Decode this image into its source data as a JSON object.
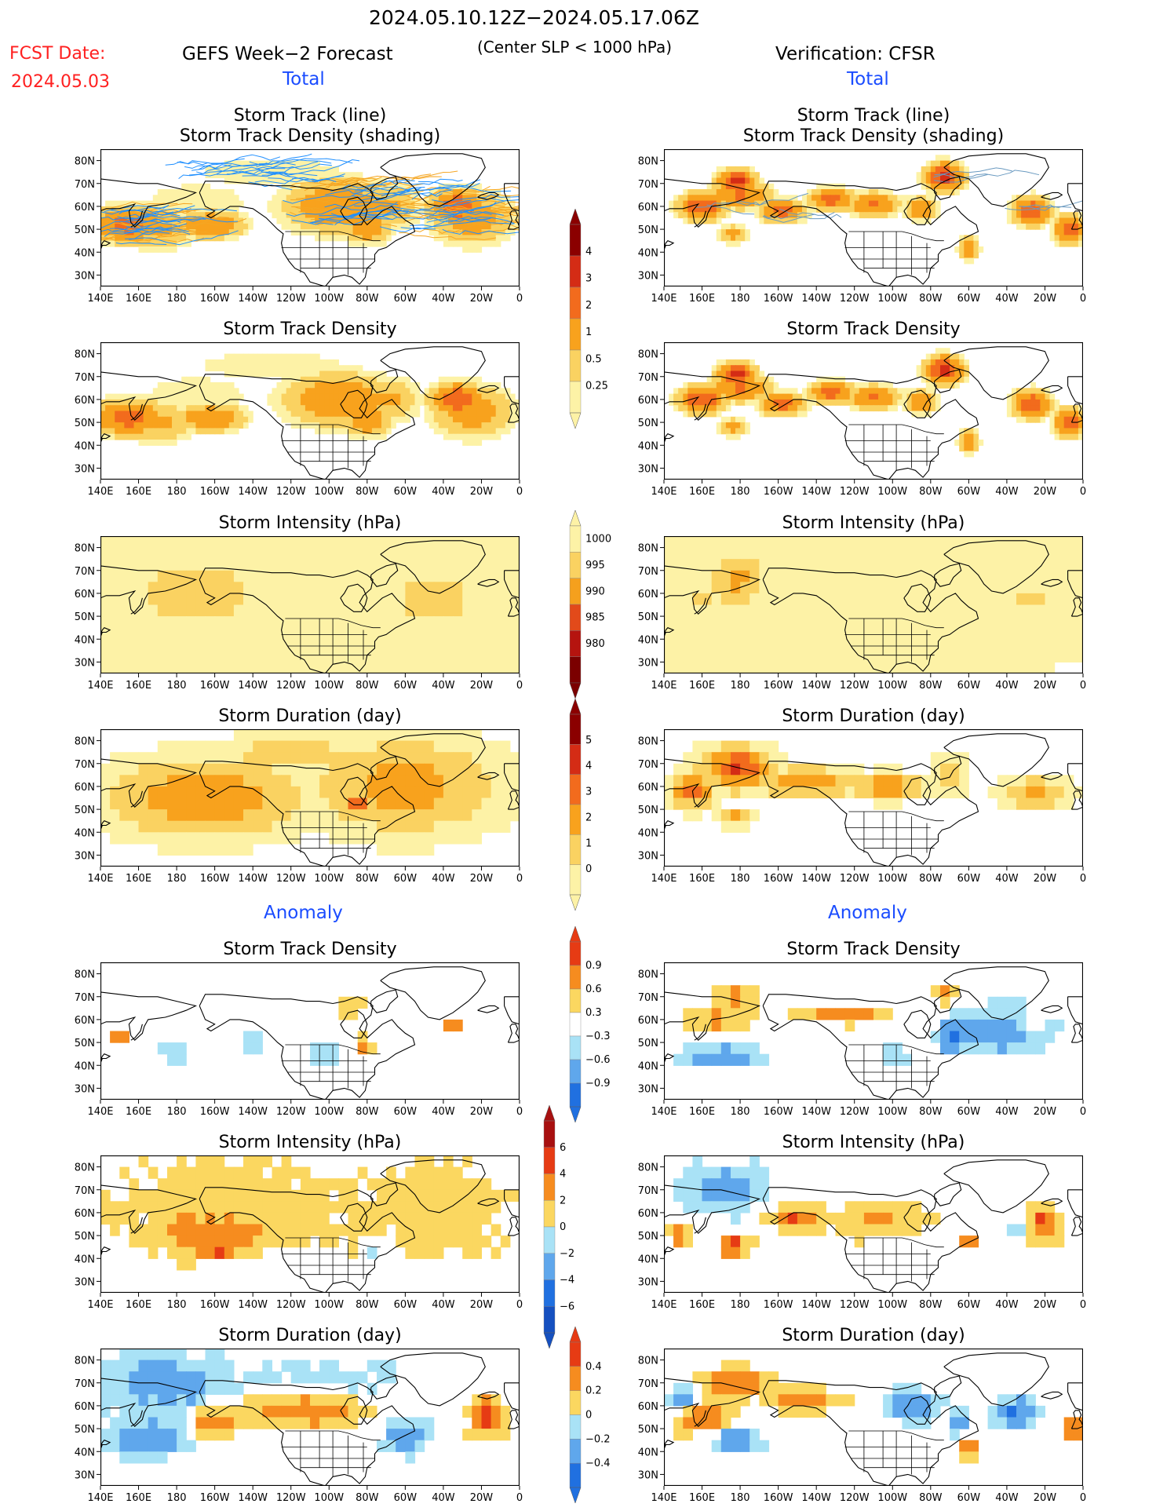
{
  "header": {
    "period": "2024.05.10.12Z−2024.05.17.06Z",
    "criteria": "(Center SLP < 1000 hPa)",
    "fcst_label": "FCST Date:",
    "fcst_date": "2024.05.03",
    "left_title": "GEFS Week−2 Forecast",
    "right_title": "Verification: CFSR",
    "total_label": "Total",
    "anomaly_label": "Anomaly"
  },
  "colors": {
    "red_text": "#ff2020",
    "blue_text": "#1a4cff",
    "land_outline": "#000000",
    "track_forecast": "#1f8fff",
    "track_verif": "#6a9ac0"
  },
  "axes": {
    "lon_ticks": [
      "140E",
      "160E",
      "180",
      "160W",
      "140W",
      "120W",
      "100W",
      "80W",
      "60W",
      "40W",
      "20W",
      "0"
    ],
    "lat_ticks": [
      "80N",
      "70N",
      "60N",
      "50N",
      "40N",
      "30N"
    ],
    "lon_range_deg_east": [
      140,
      360
    ],
    "lat_range_deg": [
      25,
      85
    ]
  },
  "panels": [
    {
      "id": "total-track",
      "title": "Storm Track (line)",
      "title2": "Storm Track Density (shading)",
      "scale": "density",
      "forecast_tracks": true,
      "verif_tracks": true
    },
    {
      "id": "total-density",
      "title": "Storm Track Density",
      "scale": "density"
    },
    {
      "id": "total-intensity",
      "title": "Storm Intensity (hPa)",
      "scale": "intensity"
    },
    {
      "id": "total-duration",
      "title": "Storm Duration (day)",
      "scale": "duration"
    },
    {
      "id": "anom-density",
      "title": "Storm Track Density",
      "scale": "anom_density"
    },
    {
      "id": "anom-intensity",
      "title": "Storm Intensity (hPa)",
      "scale": "anom_intensity"
    },
    {
      "id": "anom-duration",
      "title": "Storm Duration (day)",
      "scale": "anom_duration"
    }
  ],
  "colorbars": {
    "density": {
      "labels": [
        "4",
        "3",
        "2",
        "1",
        "0.5",
        "0.25"
      ],
      "colors": [
        "#8b0000",
        "#d42c15",
        "#f26b1d",
        "#f8a21d",
        "#fad261",
        "#fdf2a6"
      ]
    },
    "intensity": {
      "labels": [
        "1000",
        "995",
        "990",
        "985",
        "980"
      ],
      "colors": [
        "#fdf2a6",
        "#fad261",
        "#f5a01d",
        "#e24a1a",
        "#b5140f",
        "#7b0000"
      ]
    },
    "duration": {
      "labels": [
        "5",
        "4",
        "3",
        "2",
        "1",
        "0"
      ],
      "colors": [
        "#8b0000",
        "#d42c15",
        "#f26b1d",
        "#f8a21d",
        "#fad261",
        "#fdf2a6"
      ]
    },
    "anom_density": {
      "labels": [
        "0.9",
        "0.6",
        "0.3",
        "−0.3",
        "−0.6",
        "−0.9"
      ],
      "colors": [
        "#e63b14",
        "#f68c1f",
        "#fbd760",
        "#ffffff",
        "#a9e2f6",
        "#5fa7ec",
        "#2070e0"
      ]
    },
    "anom_intensity": {
      "labels": [
        "6",
        "4",
        "2",
        "0",
        "−2",
        "−4",
        "−6"
      ],
      "colors": [
        "#a81010",
        "#e63b14",
        "#f68c1f",
        "#fbd760",
        "#a9e2f6",
        "#5fa7ec",
        "#2070e0",
        "#1550c0"
      ]
    },
    "anom_duration": {
      "labels": [
        "0.4",
        "0.2",
        "0",
        "−0.2",
        "−0.4"
      ],
      "colors": [
        "#e63b14",
        "#f68c1f",
        "#fbd760",
        "#a9e2f6",
        "#5fa7ec",
        "#2070e0"
      ]
    }
  },
  "fields": {
    "total-density": {
      "forecast": [
        {
          "lon": 155,
          "lat": 52,
          "v": 2.5,
          "rx": 20,
          "ry": 8
        },
        {
          "lon": 198,
          "lat": 52,
          "v": 2.0,
          "rx": 18,
          "ry": 6
        },
        {
          "lon": 170,
          "lat": 50,
          "v": 1.2,
          "rx": 22,
          "ry": 9
        },
        {
          "lon": 265,
          "lat": 60,
          "v": 1.8,
          "rx": 30,
          "ry": 12
        },
        {
          "lon": 280,
          "lat": 52,
          "v": 2.0,
          "rx": 12,
          "ry": 8
        },
        {
          "lon": 290,
          "lat": 60,
          "v": 1.2,
          "rx": 18,
          "ry": 10
        },
        {
          "lon": 327,
          "lat": 60,
          "v": 3.0,
          "rx": 14,
          "ry": 7
        },
        {
          "lon": 335,
          "lat": 55,
          "v": 1.5,
          "rx": 22,
          "ry": 12
        },
        {
          "lon": 230,
          "lat": 75,
          "v": 0.35,
          "rx": 70,
          "ry": 10
        },
        {
          "lon": 190,
          "lat": 62,
          "v": 0.4,
          "rx": 40,
          "ry": 12
        }
      ],
      "verification": [
        {
          "lon": 160,
          "lat": 60,
          "v": 3.2,
          "rx": 12,
          "ry": 6
        },
        {
          "lon": 178,
          "lat": 71,
          "v": 3.5,
          "rx": 10,
          "ry": 5
        },
        {
          "lon": 180,
          "lat": 65,
          "v": 2.2,
          "rx": 16,
          "ry": 6
        },
        {
          "lon": 176,
          "lat": 48,
          "v": 1.3,
          "rx": 8,
          "ry": 4
        },
        {
          "lon": 202,
          "lat": 58,
          "v": 2.5,
          "rx": 12,
          "ry": 5
        },
        {
          "lon": 228,
          "lat": 63,
          "v": 2.5,
          "rx": 12,
          "ry": 5
        },
        {
          "lon": 250,
          "lat": 61,
          "v": 2.2,
          "rx": 14,
          "ry": 5
        },
        {
          "lon": 275,
          "lat": 59,
          "v": 2.0,
          "rx": 8,
          "ry": 5
        },
        {
          "lon": 287,
          "lat": 73,
          "v": 3.5,
          "rx": 10,
          "ry": 6
        },
        {
          "lon": 300,
          "lat": 42,
          "v": 2.0,
          "rx": 5,
          "ry": 5
        },
        {
          "lon": 333,
          "lat": 58,
          "v": 3.0,
          "rx": 10,
          "ry": 6
        },
        {
          "lon": 353,
          "lat": 50,
          "v": 3.0,
          "rx": 8,
          "ry": 6
        }
      ]
    },
    "total-intensity": {
      "forecast": [
        {
          "lon": 190,
          "lat": 60,
          "v": 993,
          "rx": 55,
          "ry": 24
        },
        {
          "lon": 315,
          "lat": 57,
          "v": 994,
          "rx": 45,
          "ry": 22
        },
        {
          "lon": 270,
          "lat": 62,
          "v": 995,
          "rx": 18,
          "ry": 12
        },
        {
          "lon": 240,
          "lat": 73,
          "v": 998,
          "rx": 60,
          "ry": 9
        }
      ],
      "verification": [
        {
          "lon": 178,
          "lat": 66,
          "v": 987,
          "rx": 12,
          "ry": 8
        },
        {
          "lon": 178,
          "lat": 66,
          "v": 991,
          "rx": 20,
          "ry": 14
        },
        {
          "lon": 160,
          "lat": 58,
          "v": 994,
          "rx": 12,
          "ry": 8
        },
        {
          "lon": 240,
          "lat": 62,
          "v": 998,
          "rx": 45,
          "ry": 8
        },
        {
          "lon": 278,
          "lat": 60,
          "v": 993,
          "rx": 6,
          "ry": 4
        },
        {
          "lon": 333,
          "lat": 57,
          "v": 993,
          "rx": 12,
          "ry": 5
        },
        {
          "lon": 300,
          "lat": 45,
          "v": 998,
          "rx": 7,
          "ry": 7
        }
      ]
    },
    "total-duration": {
      "forecast": [
        {
          "lon": 195,
          "lat": 55,
          "v": 3.0,
          "rx": 55,
          "ry": 18
        },
        {
          "lon": 300,
          "lat": 60,
          "v": 2.5,
          "rx": 55,
          "ry": 22
        },
        {
          "lon": 275,
          "lat": 52,
          "v": 3.5,
          "rx": 8,
          "ry": 5
        },
        {
          "lon": 240,
          "lat": 74,
          "v": 1.5,
          "rx": 50,
          "ry": 9
        }
      ],
      "verification": [
        {
          "lon": 178,
          "lat": 68,
          "v": 4.2,
          "rx": 20,
          "ry": 10
        },
        {
          "lon": 155,
          "lat": 58,
          "v": 3.8,
          "rx": 12,
          "ry": 8
        },
        {
          "lon": 215,
          "lat": 62,
          "v": 2.7,
          "rx": 30,
          "ry": 7
        },
        {
          "lon": 258,
          "lat": 60,
          "v": 2.8,
          "rx": 20,
          "ry": 6
        },
        {
          "lon": 290,
          "lat": 65,
          "v": 1.5,
          "rx": 10,
          "ry": 10
        },
        {
          "lon": 335,
          "lat": 57,
          "v": 2.5,
          "rx": 18,
          "ry": 7
        },
        {
          "lon": 178,
          "lat": 46,
          "v": 2.5,
          "rx": 10,
          "ry": 4
        }
      ]
    },
    "anom-density": {
      "forecast": [
        {
          "lon": 150,
          "lat": 52,
          "v": 0.7,
          "rx": 8,
          "ry": 5
        },
        {
          "lon": 278,
          "lat": 48,
          "v": 0.7,
          "rx": 6,
          "ry": 6
        },
        {
          "lon": 325,
          "lat": 58,
          "v": 0.8,
          "rx": 6,
          "ry": 5
        },
        {
          "lon": 272,
          "lat": 66,
          "v": 0.5,
          "rx": 14,
          "ry": 6
        },
        {
          "lon": 178,
          "lat": 47,
          "v": -0.5,
          "rx": 10,
          "ry": 9
        },
        {
          "lon": 218,
          "lat": 50,
          "v": -0.5,
          "rx": 10,
          "ry": 6
        },
        {
          "lon": 256,
          "lat": 46,
          "v": -0.5,
          "rx": 14,
          "ry": 8
        },
        {
          "lon": 315,
          "lat": 45,
          "v": -0.35,
          "rx": 15,
          "ry": 4
        }
      ],
      "verification": [
        {
          "lon": 178,
          "lat": 70,
          "v": 0.9,
          "rx": 14,
          "ry": 5
        },
        {
          "lon": 168,
          "lat": 60,
          "v": 0.8,
          "rx": 28,
          "ry": 5
        },
        {
          "lon": 235,
          "lat": 62,
          "v": 0.8,
          "rx": 30,
          "ry": 5
        },
        {
          "lon": 287,
          "lat": 71,
          "v": 0.8,
          "rx": 10,
          "ry": 5
        },
        {
          "lon": 300,
          "lat": 43,
          "v": 0.6,
          "rx": 5,
          "ry": 4
        },
        {
          "lon": 333,
          "lat": 57,
          "v": 0.7,
          "rx": 8,
          "ry": 6
        },
        {
          "lon": 355,
          "lat": 50,
          "v": 0.7,
          "rx": 6,
          "ry": 5
        },
        {
          "lon": 170,
          "lat": 44,
          "v": -0.9,
          "rx": 28,
          "ry": 6
        },
        {
          "lon": 320,
          "lat": 55,
          "v": -0.9,
          "rx": 32,
          "ry": 14
        },
        {
          "lon": 290,
          "lat": 52,
          "v": -0.7,
          "rx": 8,
          "ry": 10
        },
        {
          "lon": 262,
          "lat": 45,
          "v": -0.5,
          "rx": 12,
          "ry": 6
        }
      ]
    },
    "anom-intensity": {
      "forecast": [
        {
          "lon": 210,
          "lat": 62,
          "v": 1.6,
          "rx": 70,
          "ry": 22
        },
        {
          "lon": 320,
          "lat": 60,
          "v": 1.5,
          "rx": 40,
          "ry": 22
        },
        {
          "lon": 195,
          "lat": 50,
          "v": 3.0,
          "rx": 25,
          "ry": 8
        },
        {
          "lon": 202,
          "lat": 43,
          "v": 4.5,
          "rx": 6,
          "ry": 3
        },
        {
          "lon": 285,
          "lat": 45,
          "v": -1.2,
          "rx": 8,
          "ry": 6
        }
      ],
      "verification": [
        {
          "lon": 172,
          "lat": 70,
          "v": -3.5,
          "rx": 22,
          "ry": 10
        },
        {
          "lon": 177,
          "lat": 45,
          "v": 6.5,
          "rx": 7,
          "ry": 4
        },
        {
          "lon": 208,
          "lat": 58,
          "v": 4.0,
          "rx": 12,
          "ry": 5
        },
        {
          "lon": 252,
          "lat": 57,
          "v": 2.5,
          "rx": 30,
          "ry": 8
        },
        {
          "lon": 340,
          "lat": 55,
          "v": 5.0,
          "rx": 8,
          "ry": 8
        },
        {
          "lon": 325,
          "lat": 52,
          "v": -3.0,
          "rx": 5,
          "ry": 4
        },
        {
          "lon": 300,
          "lat": 47,
          "v": 3.0,
          "rx": 6,
          "ry": 4
        },
        {
          "lon": 148,
          "lat": 50,
          "v": 5.0,
          "rx": 5,
          "ry": 4
        }
      ]
    },
    "anom-duration": {
      "forecast": [
        {
          "lon": 175,
          "lat": 70,
          "v": -0.3,
          "rx": 40,
          "ry": 15
        },
        {
          "lon": 165,
          "lat": 45,
          "v": -0.4,
          "rx": 25,
          "ry": 8
        },
        {
          "lon": 300,
          "lat": 47,
          "v": -0.35,
          "rx": 14,
          "ry": 8
        },
        {
          "lon": 245,
          "lat": 58,
          "v": 0.3,
          "rx": 40,
          "ry": 10
        },
        {
          "lon": 343,
          "lat": 55,
          "v": 0.45,
          "rx": 10,
          "ry": 10
        },
        {
          "lon": 198,
          "lat": 52,
          "v": 0.35,
          "rx": 12,
          "ry": 8
        },
        {
          "lon": 265,
          "lat": 72,
          "v": -0.15,
          "rx": 40,
          "ry": 10
        }
      ],
      "verification": [
        {
          "lon": 178,
          "lat": 70,
          "v": 0.45,
          "rx": 18,
          "ry": 7
        },
        {
          "lon": 160,
          "lat": 55,
          "v": 0.45,
          "rx": 16,
          "ry": 8
        },
        {
          "lon": 215,
          "lat": 63,
          "v": 0.35,
          "rx": 20,
          "ry": 6
        },
        {
          "lon": 270,
          "lat": 60,
          "v": -0.4,
          "rx": 14,
          "ry": 8
        },
        {
          "lon": 150,
          "lat": 63,
          "v": -0.45,
          "rx": 8,
          "ry": 6
        },
        {
          "lon": 178,
          "lat": 45,
          "v": -0.4,
          "rx": 16,
          "ry": 5
        },
        {
          "lon": 295,
          "lat": 52,
          "v": -0.3,
          "rx": 6,
          "ry": 10
        },
        {
          "lon": 325,
          "lat": 57,
          "v": -0.4,
          "rx": 12,
          "ry": 7
        },
        {
          "lon": 300,
          "lat": 42,
          "v": 0.45,
          "rx": 5,
          "ry": 6
        },
        {
          "lon": 354,
          "lat": 50,
          "v": 0.45,
          "rx": 6,
          "ry": 5
        }
      ]
    }
  }
}
